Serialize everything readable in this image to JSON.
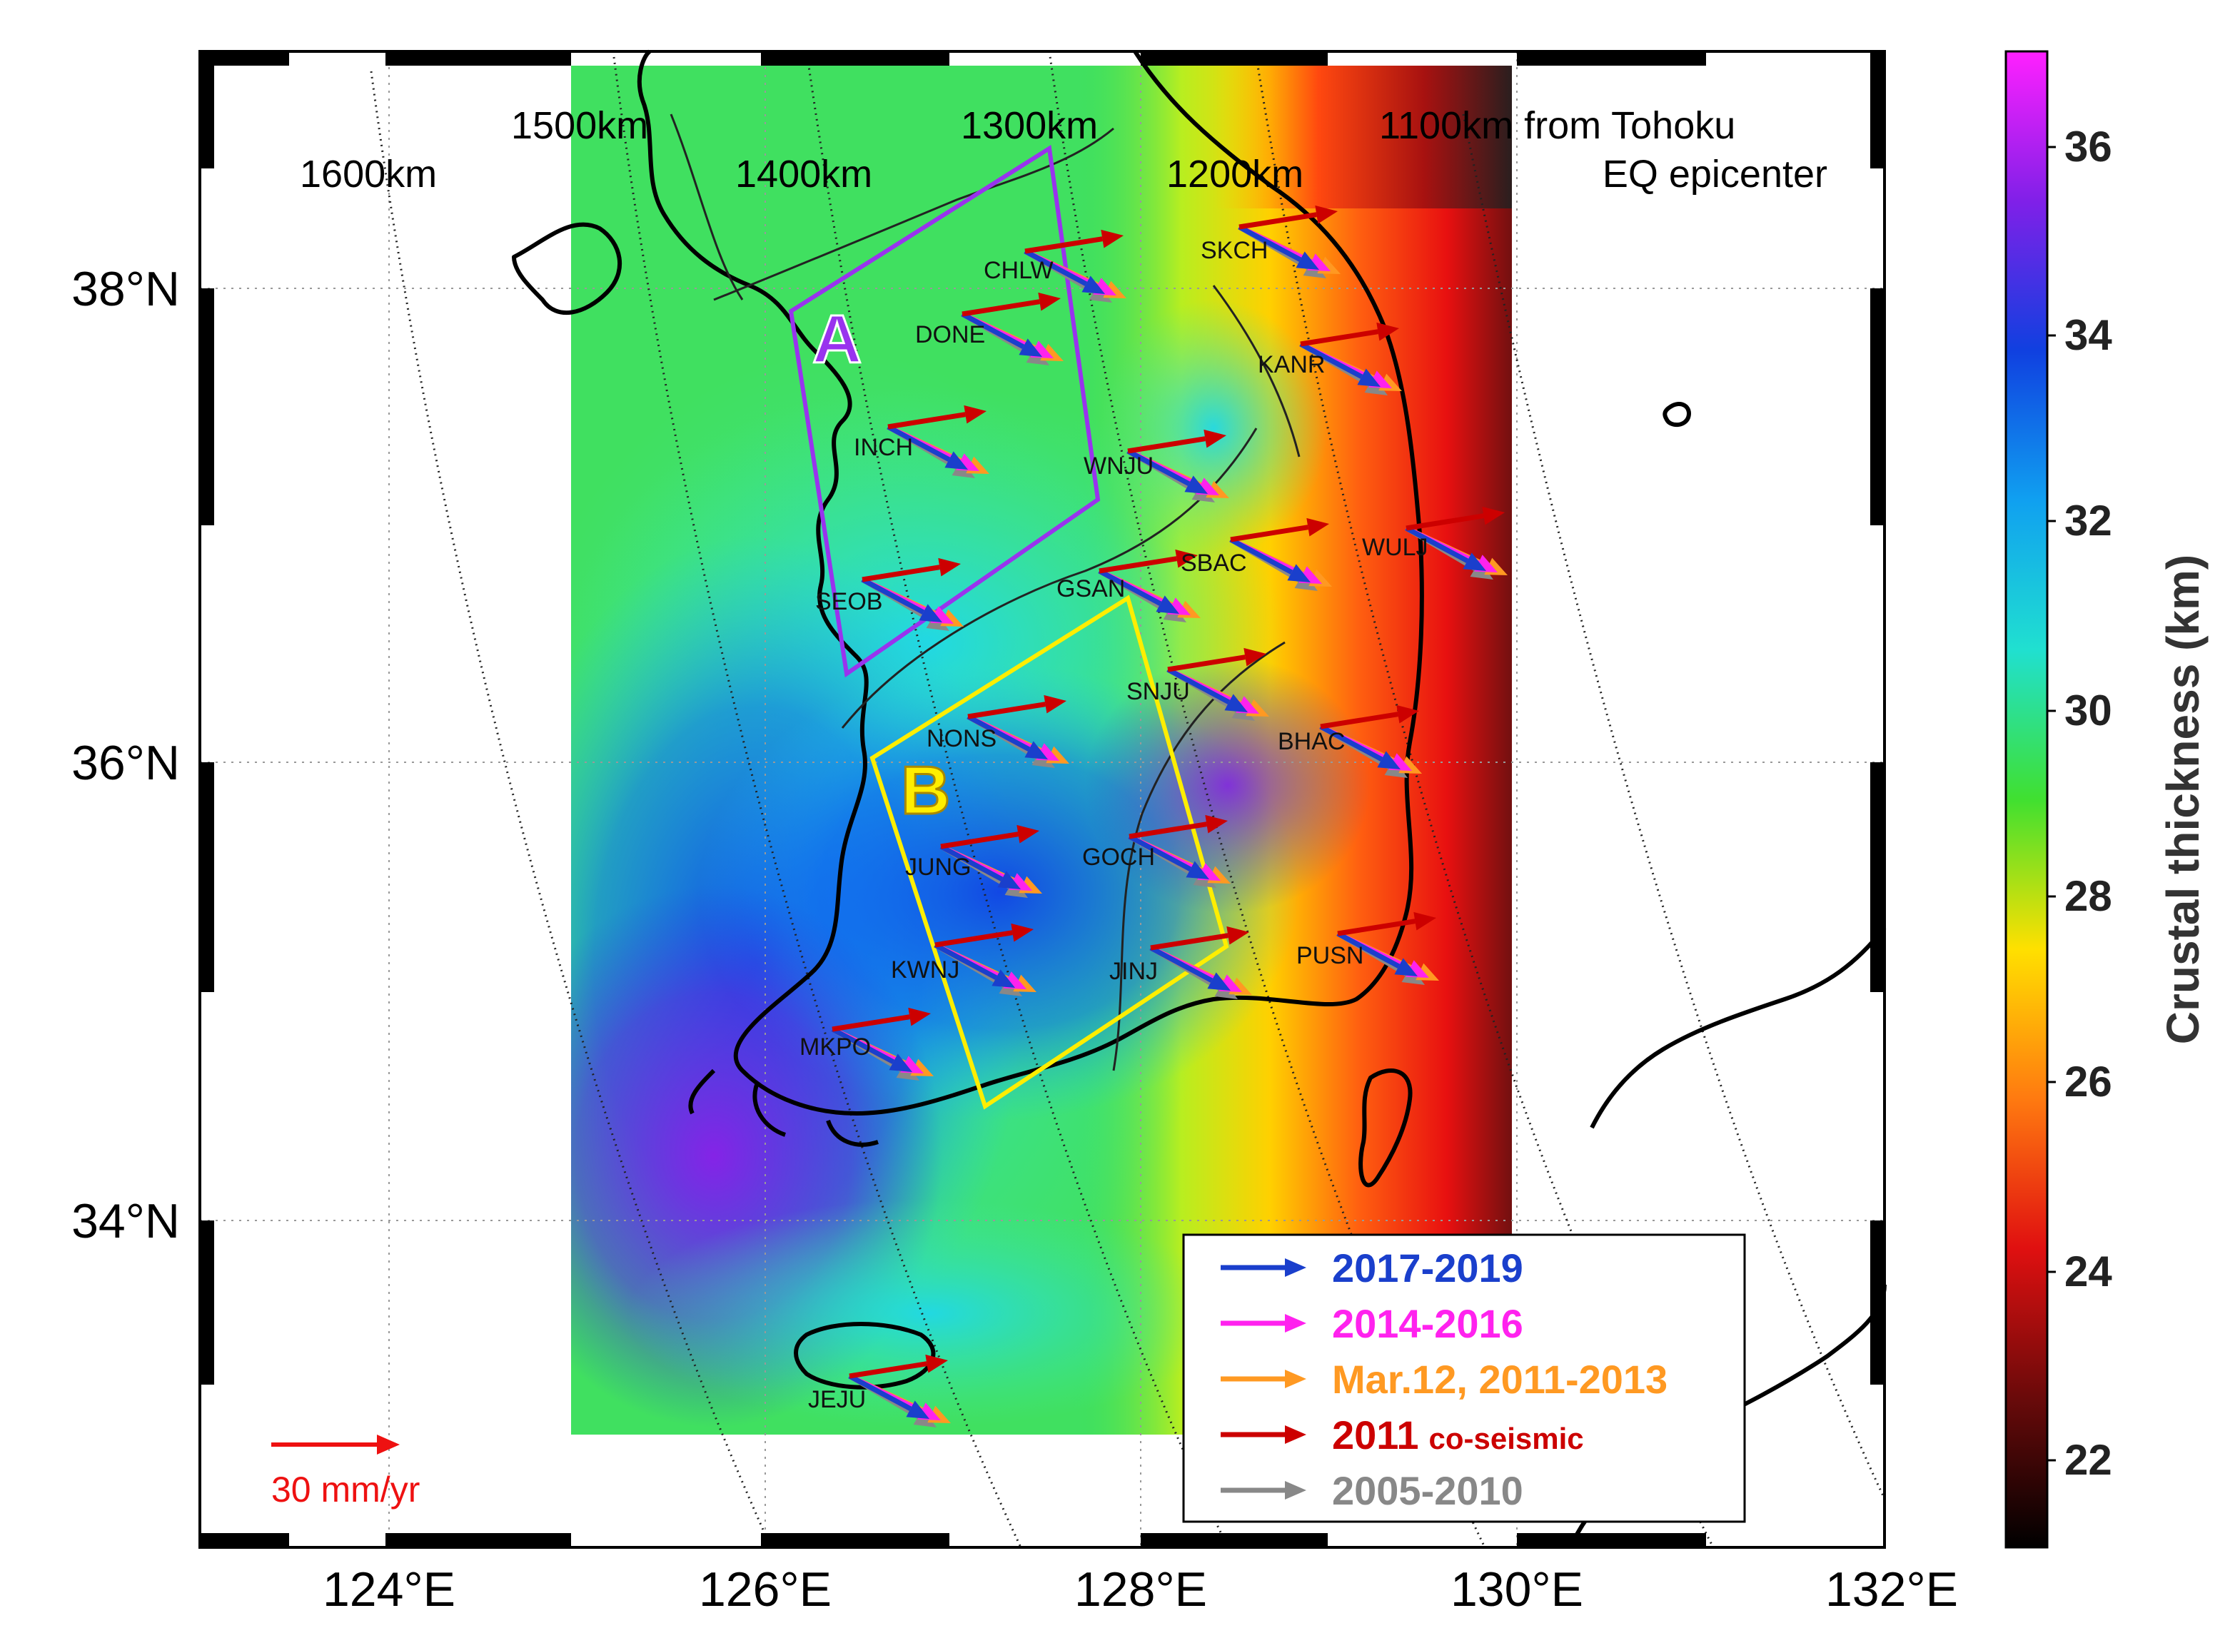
{
  "map": {
    "lon_labels": [
      "124°E",
      "126°E",
      "128°E",
      "130°E",
      "132°E"
    ],
    "lat_labels": [
      "34°N",
      "36°N",
      "38°N"
    ],
    "distance_labels": [
      "1600km",
      "1500km",
      "1400km",
      "1300km",
      "1200km",
      "1100km from Tohoku",
      "EQ epicenter"
    ],
    "region_a": "A",
    "region_b": "B",
    "scale_bar_text": "30 mm/yr",
    "stations": [
      "SKCH",
      "CHLW",
      "DONE",
      "KANR",
      "INCH",
      "WNJU",
      "WULJ",
      "SBAC",
      "GSAN",
      "SEOB",
      "SNJU",
      "NONS",
      "BHAC",
      "GOCH",
      "JUNG",
      "PUSN",
      "KWNJ",
      "JINJ",
      "MKPO",
      "JEJU"
    ]
  },
  "legend": {
    "items": [
      {
        "label": "2017-2019",
        "suffix": "",
        "color": "#1a3fcc"
      },
      {
        "label": "2014-2016",
        "suffix": "",
        "color": "#ff22ee"
      },
      {
        "label": "Mar.12, 2011-2013",
        "suffix": "",
        "color": "#ff9922"
      },
      {
        "label": "2011",
        "suffix": "co-seismic",
        "color": "#cc0000"
      },
      {
        "label": "2005-2010",
        "suffix": "",
        "color": "#888888"
      }
    ]
  },
  "colorbar": {
    "title": "Crustal thickness (km)",
    "ticks": [
      "36",
      "34",
      "32",
      "30",
      "28",
      "26",
      "24",
      "22"
    ]
  },
  "colors": {
    "scale_arrow": "#ee1111",
    "region_a": "#9933ee",
    "region_b": "#ffee00"
  }
}
